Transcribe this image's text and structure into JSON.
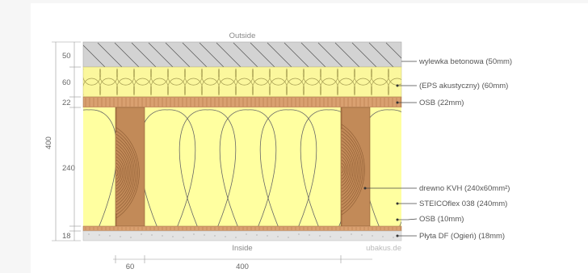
{
  "diagram": {
    "top_label": "Outside",
    "bottom_label": "Inside",
    "watermark": "ubakus.de",
    "layers": [
      {
        "thickness": "50",
        "label": "wylewka betonowa (50mm)",
        "color": "#d3d3d3"
      },
      {
        "thickness": "60",
        "label": "(EPS akustyczny) (60mm)",
        "color": "#fbf79d"
      },
      {
        "thickness": "22",
        "label": "OSB (22mm)",
        "color": "#d9a070"
      },
      {
        "thickness": "240",
        "label": "drewno KVH (240x60mm²)",
        "color": "#c28a58"
      },
      {
        "thickness": "",
        "label": "STEICOflex 038 (240mm)",
        "color": "#ffffa0"
      },
      {
        "thickness": "",
        "label": "OSB (10mm)",
        "color": "#d9a070"
      },
      {
        "thickness": "18",
        "label": "Płyta DF (Ogień) (18mm)",
        "color": "#e3e3e3"
      }
    ],
    "total_thickness": "400",
    "horizontal_dims": {
      "beam_width": "60",
      "spacing": "400"
    }
  }
}
